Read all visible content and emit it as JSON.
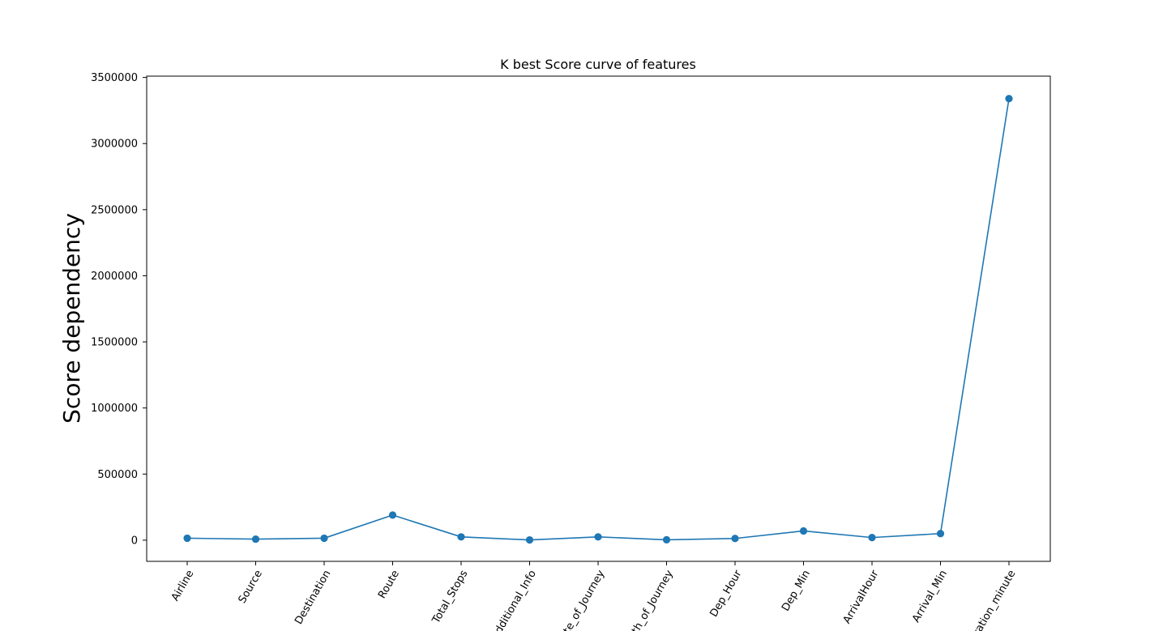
{
  "chart_data": {
    "type": "line",
    "title": "K best Score curve of features",
    "xlabel": "",
    "ylabel": "Score dependency",
    "categories": [
      "Airline",
      "Source",
      "Destination",
      "Route",
      "Total_Stops",
      "Additional_Info",
      "Date_of_Journey",
      "Month_of_Journey",
      "Dep_Hour",
      "Dep_Min",
      "ArrivalHour",
      "Arrival_Min",
      "Duration_minute"
    ],
    "series": [
      {
        "values": [
          15000,
          8000,
          15000,
          190000,
          25000,
          2000,
          25000,
          3000,
          13000,
          70000,
          20000,
          50000,
          3340000
        ]
      }
    ],
    "ylim": [
      -160000,
      3510000
    ],
    "yticks": [
      0,
      500000,
      1000000,
      1500000,
      2000000,
      2500000,
      3000000,
      3500000
    ],
    "grid": false,
    "marker": "circle",
    "color": "#1f77b4"
  }
}
